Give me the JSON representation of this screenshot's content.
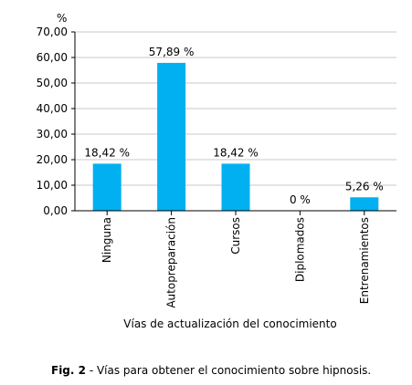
{
  "chart_data": {
    "type": "bar",
    "categories": [
      "Ninguna",
      "Autopreparación",
      "Cursos",
      "Diplomados",
      "Entrenamientos"
    ],
    "values": [
      18.42,
      57.89,
      18.42,
      0,
      5.26
    ],
    "data_labels": [
      "18,42 %",
      "57,89 %",
      "18,42 %",
      "0 %",
      "5,26 %"
    ],
    "ylim": [
      0,
      70
    ],
    "yticks": [
      0,
      10,
      20,
      30,
      40,
      50,
      60,
      70
    ],
    "ytick_labels": [
      "0,00",
      "10,00",
      "20,00",
      "30,00",
      "40,00",
      "50,00",
      "60,00",
      "70,00"
    ],
    "yunit": "%",
    "xlabel": "Vías de actualización del conocimiento",
    "grid": true,
    "bar_color": "#00b0f0"
  },
  "caption": {
    "label": "Fig. 2",
    "text": " - Vías para obtener el conocimiento sobre hipnosis."
  }
}
